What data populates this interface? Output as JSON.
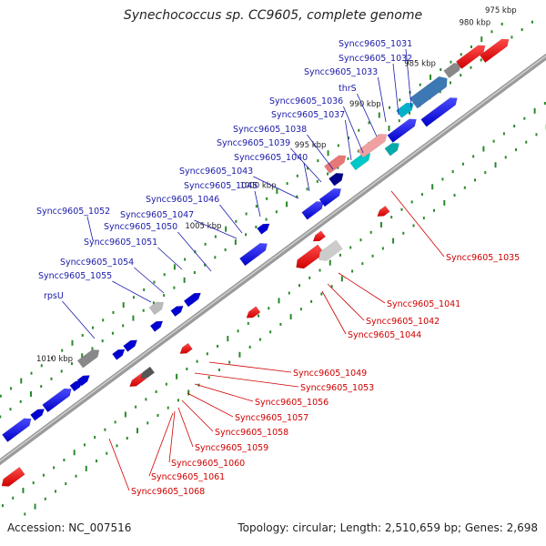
{
  "title": "Synechococcus sp. CC9605, complete genome",
  "footer": {
    "accession": "Accession: NC_007516",
    "stats": "Topology: circular; Length: 2,510,659 bp; Genes: 2,698"
  },
  "colors": {
    "backbone": "#8c8c8c",
    "forward_label": "#1a1aa8",
    "reverse_label": "#d00000",
    "tick_dots": "#2a8a2a"
  },
  "kbp_labels": [
    "975 kbp",
    "980 kbp",
    "985 kbp",
    "990 kbp",
    "995 kbp",
    "1000 kbp",
    "1005 kbp",
    "1010 kbp"
  ],
  "forward_genes": [
    "Syncc9605_1031",
    "Syncc9605_1032",
    "Syncc9605_1033",
    "thrS",
    "Syncc9605_1036",
    "Syncc9605_1037",
    "Syncc9605_1038",
    "Syncc9605_1039",
    "Syncc9605_1040",
    "Syncc9605_1043",
    "Syncc9605_1045",
    "Syncc9605_1046",
    "Syncc9605_1047",
    "Syncc9605_1052",
    "Syncc9605_1050",
    "Syncc9605_1051",
    "Syncc9605_1054",
    "Syncc9605_1055",
    "rpsU"
  ],
  "reverse_genes": [
    "Syncc9605_1035",
    "Syncc9605_1041",
    "Syncc9605_1042",
    "Syncc9605_1044",
    "Syncc9605_1049",
    "Syncc9605_1053",
    "Syncc9605_1056",
    "Syncc9605_1057",
    "Syncc9605_1058",
    "Syncc9605_1059",
    "Syncc9605_1060",
    "Syncc9605_1061",
    "Syncc9605_1068"
  ]
}
